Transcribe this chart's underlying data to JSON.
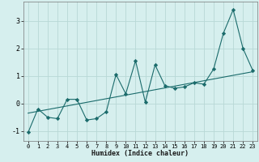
{
  "xlabel": "Humidex (Indice chaleur)",
  "background_color": "#d6efee",
  "grid_color": "#b8d8d6",
  "line_color": "#1a6b6b",
  "marker_color": "#1a6b6b",
  "xlim": [
    -0.5,
    23.5
  ],
  "ylim": [
    -1.35,
    3.7
  ],
  "xticks": [
    0,
    1,
    2,
    3,
    4,
    5,
    6,
    7,
    8,
    9,
    10,
    11,
    12,
    13,
    14,
    15,
    16,
    17,
    18,
    19,
    20,
    21,
    22,
    23
  ],
  "yticks": [
    -1,
    0,
    1,
    2,
    3
  ],
  "series": [
    [
      0,
      -1.05
    ],
    [
      1,
      -0.2
    ],
    [
      2,
      -0.5
    ],
    [
      3,
      -0.55
    ],
    [
      4,
      0.15
    ],
    [
      5,
      0.15
    ],
    [
      6,
      -0.6
    ],
    [
      7,
      -0.55
    ],
    [
      8,
      -0.3
    ],
    [
      9,
      1.05
    ],
    [
      10,
      0.35
    ],
    [
      11,
      1.55
    ],
    [
      12,
      0.05
    ],
    [
      13,
      1.4
    ],
    [
      14,
      0.65
    ],
    [
      15,
      0.55
    ],
    [
      16,
      0.6
    ],
    [
      17,
      0.75
    ],
    [
      18,
      0.7
    ],
    [
      19,
      1.25
    ],
    [
      20,
      2.55
    ],
    [
      21,
      3.4
    ],
    [
      22,
      2.0
    ],
    [
      23,
      1.2
    ]
  ],
  "regression_line": [
    [
      0,
      -0.35
    ],
    [
      23,
      1.15
    ]
  ],
  "tick_fontsize": 5,
  "xlabel_fontsize": 6,
  "linewidth": 0.8,
  "markersize": 2.2
}
